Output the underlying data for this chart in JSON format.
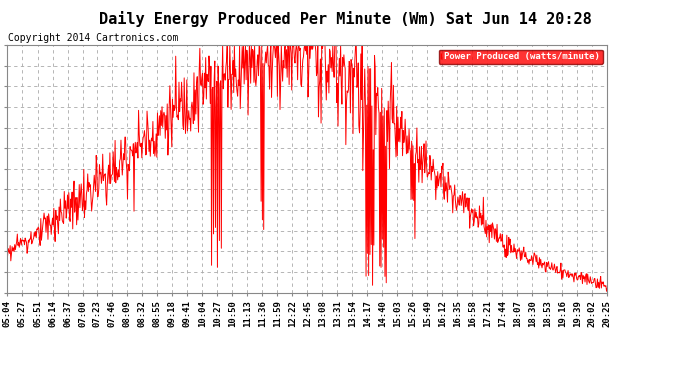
{
  "title": "Daily Energy Produced Per Minute (Wm) Sat Jun 14 20:28",
  "copyright": "Copyright 2014 Cartronics.com",
  "legend_label": "Power Produced (watts/minute)",
  "legend_bg": "#FF0000",
  "legend_fg": "#FFFFFF",
  "y_min": 0.0,
  "y_max": 56.0,
  "y_ticks": [
    0.0,
    4.67,
    9.33,
    14.0,
    18.67,
    23.33,
    28.0,
    32.67,
    37.33,
    42.0,
    46.67,
    51.33,
    56.0
  ],
  "x_tick_labels": [
    "05:04",
    "05:27",
    "05:51",
    "06:14",
    "06:37",
    "07:00",
    "07:23",
    "07:46",
    "08:09",
    "08:32",
    "08:55",
    "09:18",
    "09:41",
    "10:04",
    "10:27",
    "10:50",
    "11:13",
    "11:36",
    "11:59",
    "12:22",
    "12:45",
    "13:08",
    "13:31",
    "13:54",
    "14:17",
    "14:40",
    "15:03",
    "15:26",
    "15:49",
    "16:12",
    "16:35",
    "16:58",
    "17:21",
    "17:44",
    "18:07",
    "18:30",
    "18:53",
    "19:16",
    "19:39",
    "20:02",
    "20:25"
  ],
  "background_color": "#FFFFFF",
  "grid_color": "#AAAAAA",
  "line_color": "#FF0000",
  "title_fontsize": 11,
  "tick_fontsize": 6.5,
  "copyright_fontsize": 7
}
